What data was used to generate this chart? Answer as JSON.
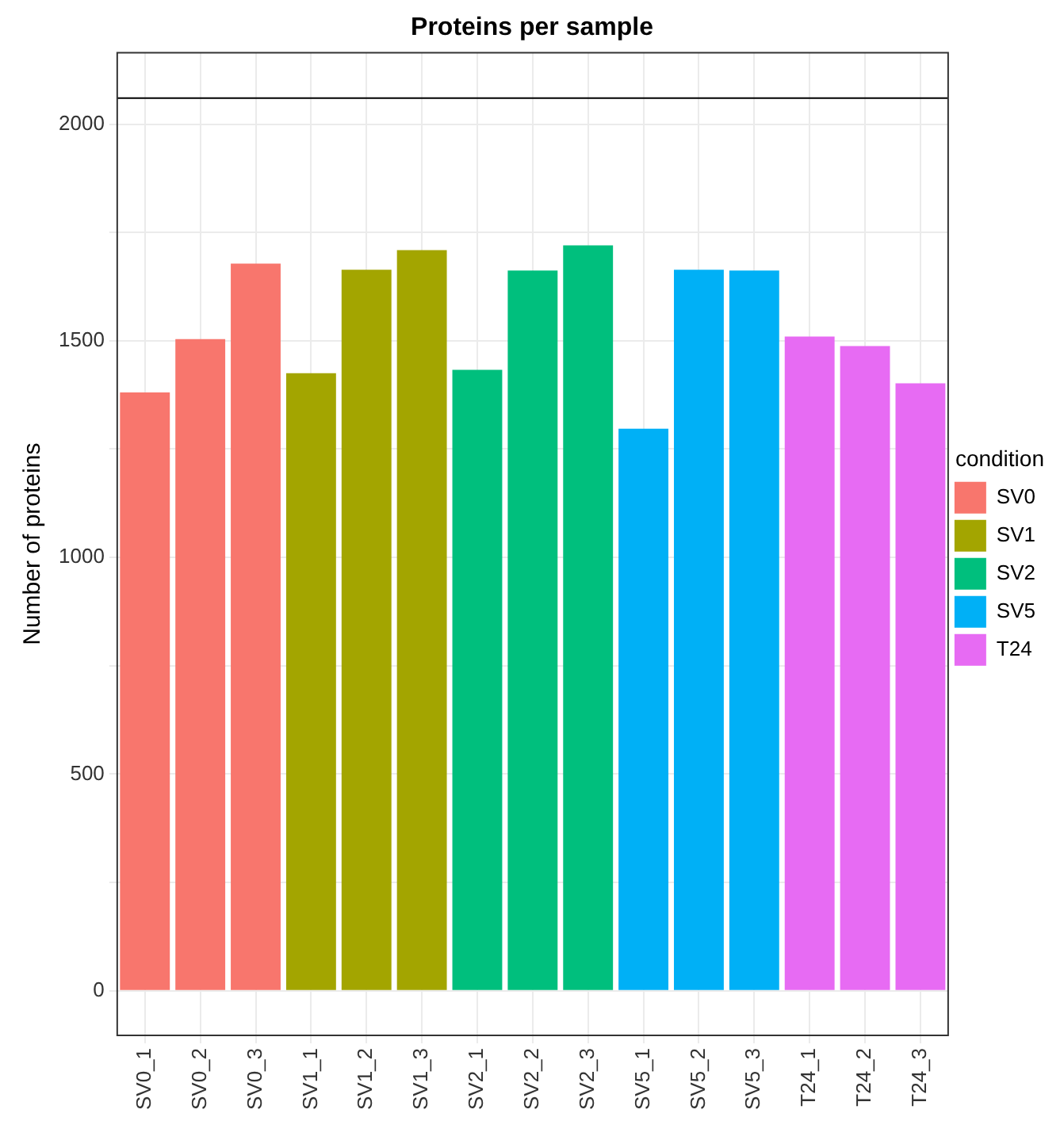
{
  "chart_data": {
    "type": "bar",
    "title": "Proteins per sample",
    "ylabel": "Number of proteins",
    "legend_title": "condition",
    "legend": "right",
    "grid": true,
    "categories": [
      "SV0_1",
      "SV0_2",
      "SV0_3",
      "SV1_1",
      "SV1_2",
      "SV1_3",
      "SV2_1",
      "SV2_2",
      "SV2_3",
      "SV5_1",
      "SV5_2",
      "SV5_3",
      "T24_1",
      "T24_2",
      "T24_3"
    ],
    "series": [
      {
        "name": "SV0",
        "color": "#f8766d",
        "values": [
          1381,
          1504,
          1678,
          null,
          null,
          null,
          null,
          null,
          null,
          null,
          null,
          null,
          null,
          null,
          null
        ]
      },
      {
        "name": "SV1",
        "color": "#a3a500",
        "values": [
          null,
          null,
          null,
          1425,
          1664,
          1709,
          null,
          null,
          null,
          null,
          null,
          null,
          null,
          null,
          null
        ]
      },
      {
        "name": "SV2",
        "color": "#00bf7d",
        "values": [
          null,
          null,
          null,
          null,
          null,
          null,
          1433,
          1662,
          1720,
          null,
          null,
          null,
          null,
          null,
          null
        ]
      },
      {
        "name": "SV5",
        "color": "#00b0f6",
        "values": [
          null,
          null,
          null,
          null,
          null,
          null,
          null,
          null,
          null,
          1297,
          1664,
          1662,
          null,
          null,
          null
        ]
      },
      {
        "name": "T24",
        "color": "#e76bf3",
        "values": [
          null,
          null,
          null,
          null,
          null,
          null,
          null,
          null,
          null,
          null,
          null,
          null,
          1510,
          1488,
          1402
        ]
      }
    ],
    "ylim": [
      -103,
      2165
    ],
    "yticks": [
      0,
      {
        "value": 250,
        "label": null
      },
      500,
      {
        "value": 750,
        "label": null
      },
      1000,
      {
        "value": 1250,
        "label": null
      },
      1500,
      {
        "value": 1750,
        "label": null
      },
      2000
    ],
    "ref_lines": [
      {
        "axis": "y",
        "value": 2060,
        "color": "#000000"
      }
    ]
  }
}
